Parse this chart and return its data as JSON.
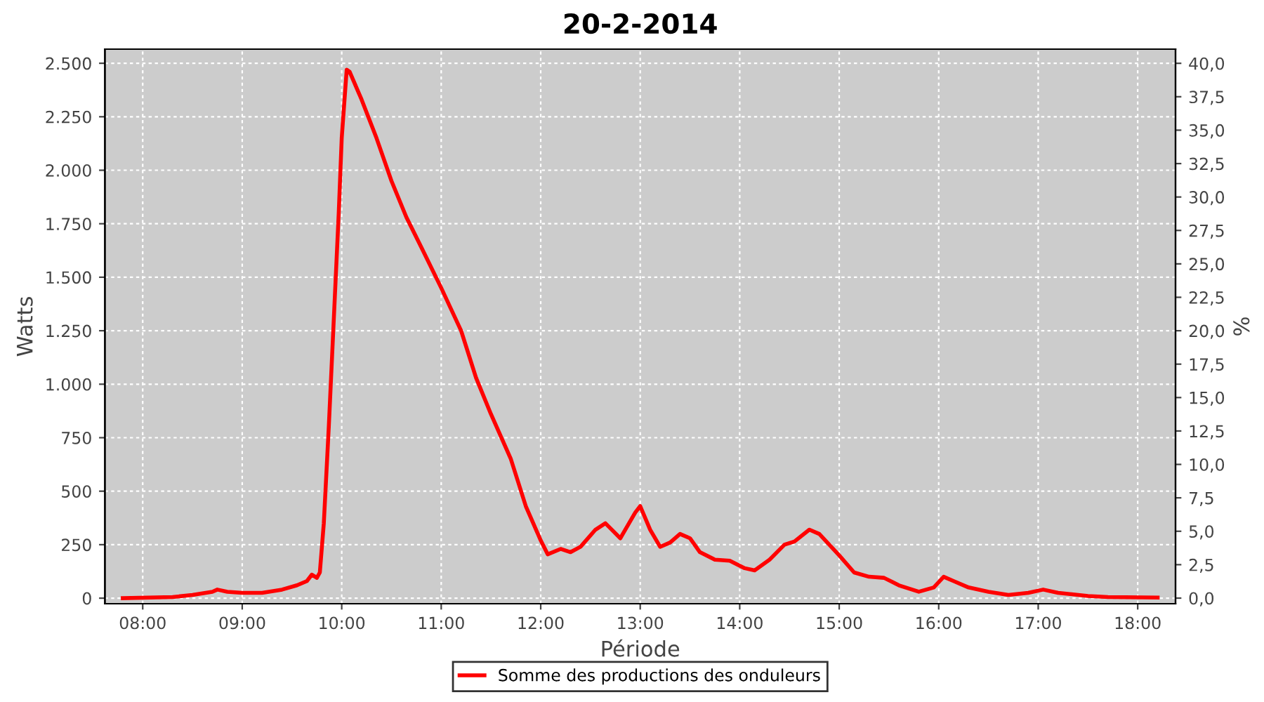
{
  "chart_data": {
    "type": "line",
    "title": "20-2-2014",
    "xlabel": "Période",
    "ylabel": "Watts",
    "y2label": "%",
    "xlim": [
      7.62,
      18.38
    ],
    "xticks": [
      {
        "value": 8,
        "label": "08:00"
      },
      {
        "value": 9,
        "label": "09:00"
      },
      {
        "value": 10,
        "label": "10:00"
      },
      {
        "value": 11,
        "label": "11:00"
      },
      {
        "value": 12,
        "label": "12:00"
      },
      {
        "value": 13,
        "label": "13:00"
      },
      {
        "value": 14,
        "label": "14:00"
      },
      {
        "value": 15,
        "label": "15:00"
      },
      {
        "value": 16,
        "label": "16:00"
      },
      {
        "value": 17,
        "label": "17:00"
      },
      {
        "value": 18,
        "label": "18:00"
      }
    ],
    "ylim": [
      -26,
      2566
    ],
    "yticks": [
      0,
      250,
      500,
      750,
      {
        "value": 1000,
        "label": "1.000"
      },
      {
        "value": 1250,
        "label": "1.250"
      },
      {
        "value": 1500,
        "label": "1.500"
      },
      {
        "value": 1750,
        "label": "1.750"
      },
      {
        "value": 2000,
        "label": "2.000"
      },
      {
        "value": 2250,
        "label": "2.250"
      },
      {
        "value": 2500,
        "label": "2.500"
      }
    ],
    "y2lim": [
      -0.42,
      41.06
    ],
    "y2ticks": [
      {
        "value": 0,
        "label": "0,0"
      },
      {
        "value": 2.5,
        "label": "2,5"
      },
      {
        "value": 5,
        "label": "5,0"
      },
      {
        "value": 7.5,
        "label": "7,5"
      },
      {
        "value": 10,
        "label": "10,0"
      },
      {
        "value": 12.5,
        "label": "12,5"
      },
      {
        "value": 15,
        "label": "15,0"
      },
      {
        "value": 17.5,
        "label": "17,5"
      },
      {
        "value": 20,
        "label": "20,0"
      },
      {
        "value": 22.5,
        "label": "22,5"
      },
      {
        "value": 25,
        "label": "25,0"
      },
      {
        "value": 27.5,
        "label": "27,5"
      },
      {
        "value": 30,
        "label": "30,0"
      },
      {
        "value": 32.5,
        "label": "32,5"
      },
      {
        "value": 35,
        "label": "35,0"
      },
      {
        "value": 37.5,
        "label": "37,5"
      },
      {
        "value": 40,
        "label": "40,0"
      }
    ],
    "grid": true,
    "legend": "bottom",
    "marker": "none",
    "line_style": "solid",
    "x": [
      7.8,
      8.3,
      8.5,
      8.7,
      8.75,
      8.85,
      9.0,
      9.2,
      9.4,
      9.55,
      9.65,
      9.7,
      9.75,
      9.78,
      9.82,
      9.87,
      9.93,
      9.97,
      10.0,
      10.05,
      10.08,
      10.2,
      10.35,
      10.5,
      10.65,
      10.8,
      11.0,
      11.2,
      11.35,
      11.5,
      11.7,
      11.85,
      12.0,
      12.07,
      12.2,
      12.3,
      12.4,
      12.55,
      12.65,
      12.8,
      12.95,
      13.0,
      13.1,
      13.2,
      13.3,
      13.4,
      13.5,
      13.6,
      13.75,
      13.9,
      14.05,
      14.15,
      14.3,
      14.45,
      14.55,
      14.7,
      14.8,
      15.0,
      15.15,
      15.3,
      15.45,
      15.6,
      15.8,
      15.95,
      16.05,
      16.15,
      16.3,
      16.5,
      16.7,
      16.9,
      17.05,
      17.2,
      17.5,
      17.7,
      18.2
    ],
    "series": [
      {
        "name": "Somme des productions des onduleurs",
        "color": "#ff0000",
        "values": [
          0,
          5,
          15,
          30,
          40,
          30,
          25,
          25,
          40,
          60,
          80,
          110,
          95,
          120,
          350,
          800,
          1400,
          1800,
          2150,
          2470,
          2460,
          2330,
          2150,
          1950,
          1780,
          1640,
          1450,
          1250,
          1030,
          860,
          650,
          430,
          270,
          205,
          230,
          215,
          240,
          320,
          350,
          280,
          400,
          430,
          320,
          240,
          260,
          300,
          280,
          215,
          180,
          175,
          140,
          130,
          180,
          250,
          265,
          320,
          300,
          200,
          120,
          100,
          95,
          60,
          30,
          50,
          100,
          80,
          50,
          30,
          15,
          25,
          40,
          25,
          10,
          5,
          3
        ]
      }
    ]
  }
}
